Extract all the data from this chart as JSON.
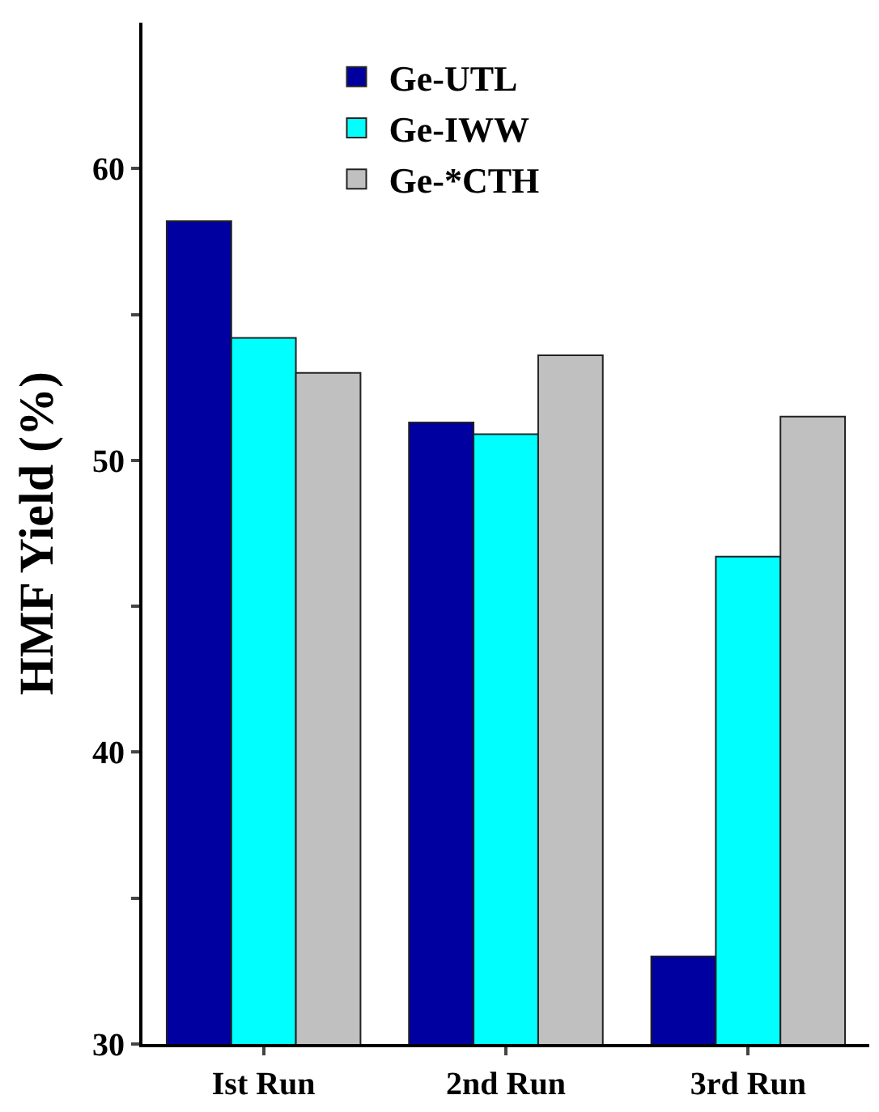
{
  "chart_data": {
    "type": "bar",
    "ylabel": "HMF Yield (%)",
    "categories": [
      "Ist Run",
      "2nd Run",
      "3rd Run"
    ],
    "series": [
      {
        "name": "Ge-UTL",
        "color": "#0000a0",
        "values": [
          58.2,
          51.3,
          33.0
        ]
      },
      {
        "name": "Ge-IWW",
        "color": "#00ffff",
        "values": [
          54.2,
          50.9,
          46.7
        ]
      },
      {
        "name": "Ge-*CTH",
        "color": "#c0c0c0",
        "values": [
          53.0,
          53.6,
          51.5
        ]
      }
    ],
    "ylim": [
      30,
      65
    ],
    "yticks": [
      30,
      {
        "value": 35,
        "label": null
      },
      40,
      {
        "value": 45,
        "label": null
      },
      50,
      {
        "value": 55,
        "label": null
      },
      60
    ],
    "legend": "top"
  }
}
